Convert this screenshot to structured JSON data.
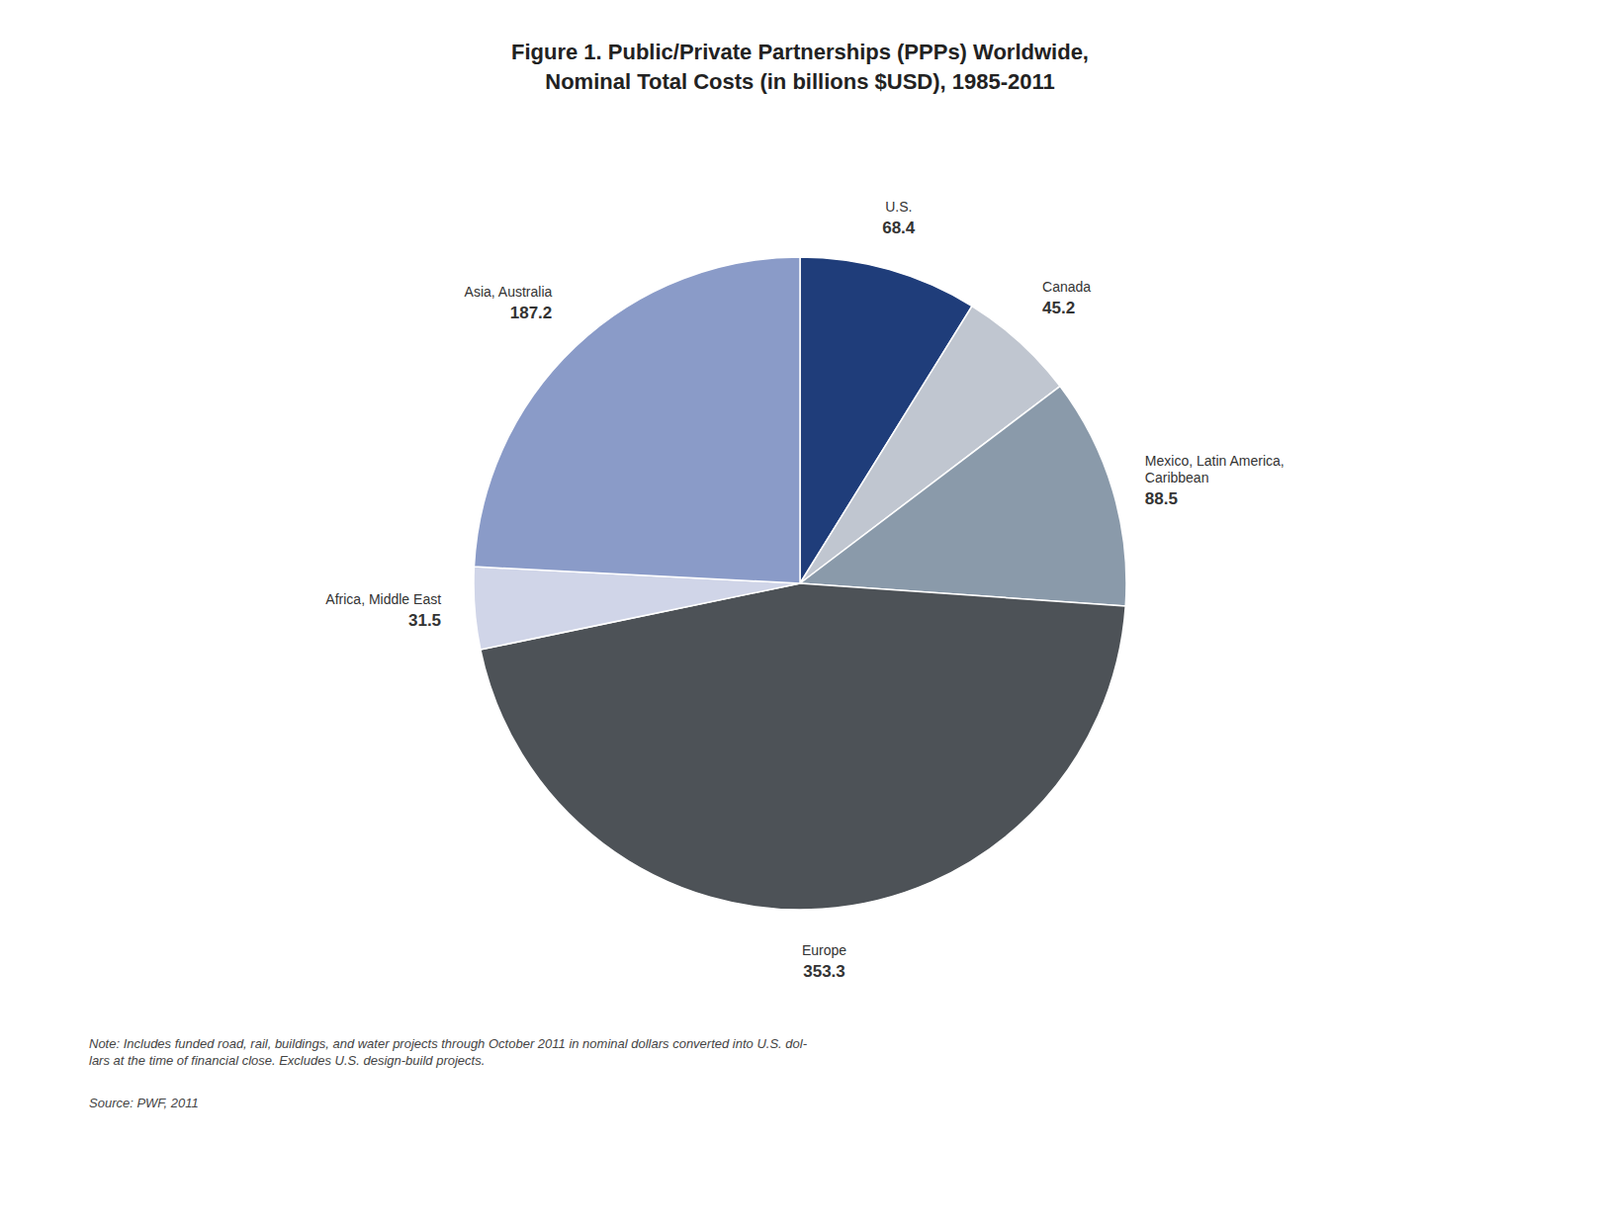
{
  "chart_data": {
    "type": "pie",
    "title": "Figure 1. Public/Private Partnerships (PPPs) Worldwide,\nNominal Total Costs (in billions $USD), 1985-2011",
    "categories": [
      "U.S.",
      "Canada",
      "Mexico, Latin America,\nCaribbean",
      "Europe",
      "Africa, Middle East",
      "Asia, Australia"
    ],
    "values": [
      68.4,
      45.2,
      88.5,
      353.3,
      31.5,
      187.2
    ],
    "colors": [
      "#1f3d7a",
      "#c0c6d0",
      "#8a9aaa",
      "#4d5257",
      "#d0d5e8",
      "#8a9bc8"
    ],
    "data_labels": true,
    "annotations": [
      "Note: Includes funded road, rail, buildings, and water projects through October 2011 in nominal dollars converted into U.S. dol-\nlars at the time of financial close. Excludes U.S. design-build projects.",
      "Source: PWF, 2011"
    ]
  }
}
